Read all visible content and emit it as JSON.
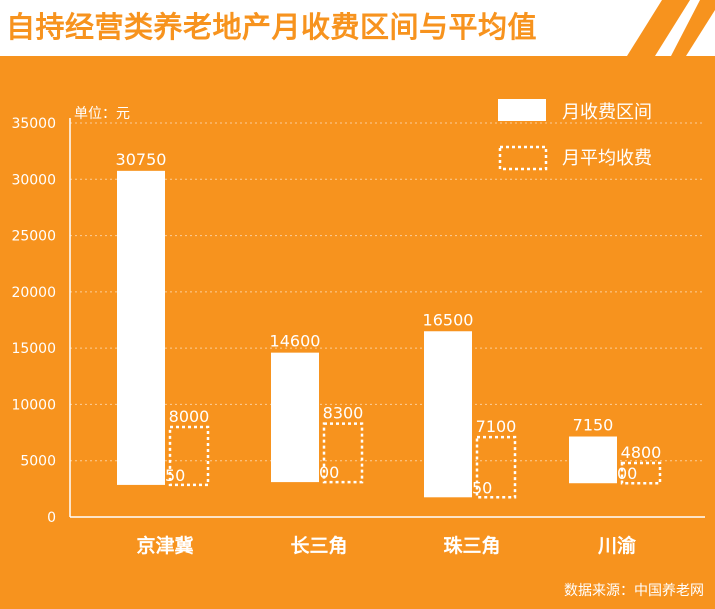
{
  "header": {
    "title": "自持经营类养老地产月收费区间与平均值"
  },
  "footer": {
    "source": "数据来源：中国养老网"
  },
  "colors": {
    "background": "#F7931E",
    "bar": "#FFFFFF",
    "text": "#FFFFFF",
    "title_bar": "#FFFFFF"
  },
  "chart_data": {
    "type": "bar",
    "unit_label": "单位：元",
    "categories": [
      "京津冀",
      "长三角",
      "珠三角",
      "川渝"
    ],
    "series": [
      {
        "name": "月收费区间",
        "style": "solid",
        "low": [
          2850,
          3100,
          1750,
          3000
        ],
        "high": [
          30750,
          14600,
          16500,
          7150
        ]
      },
      {
        "name": "月平均收费",
        "style": "dotted-outline",
        "values": [
          8000,
          8300,
          7100,
          4800
        ]
      }
    ],
    "yticks": [
      0,
      5000,
      10000,
      15000,
      20000,
      25000,
      30000,
      35000
    ],
    "ylim": [
      0,
      35000
    ],
    "grid": true,
    "legend_position": "top-right"
  }
}
